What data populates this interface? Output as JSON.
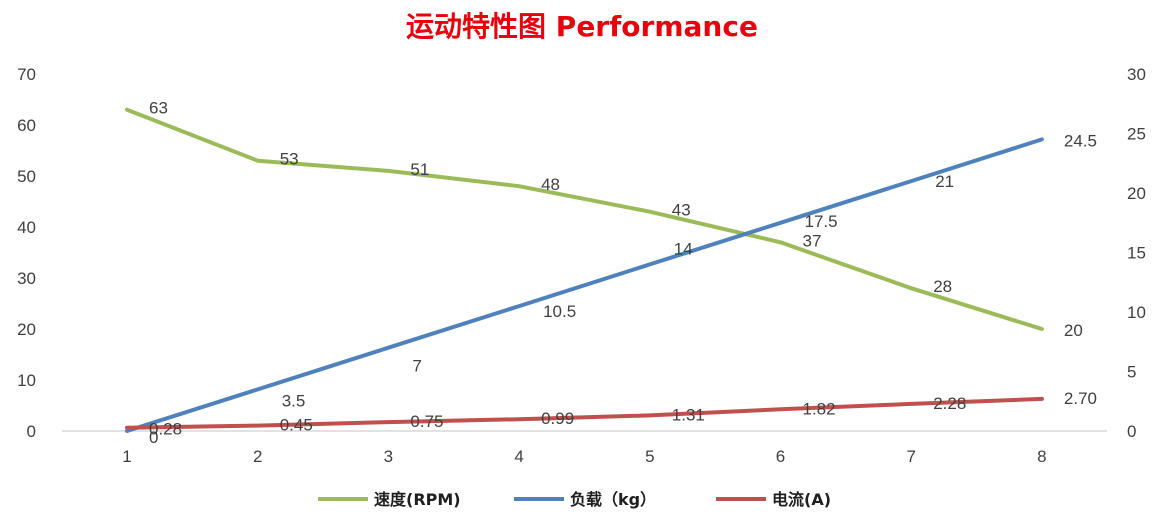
{
  "chart_data": {
    "type": "line",
    "title": "运动特性图 Performance",
    "x": [
      1,
      2,
      3,
      4,
      5,
      6,
      7,
      8
    ],
    "y_left": {
      "range": [
        0,
        70
      ],
      "ticks": [
        0,
        10,
        20,
        30,
        40,
        50,
        60,
        70
      ]
    },
    "y_right": {
      "range": [
        0,
        30
      ],
      "ticks": [
        0,
        5,
        10,
        15,
        20,
        25,
        30
      ]
    },
    "grid": false,
    "legend_position": "bottom",
    "series": [
      {
        "name": "速度(RPM)",
        "axis": "left",
        "color": "#9bbb59",
        "values": [
          63,
          53,
          51,
          48,
          43,
          37,
          28,
          20
        ],
        "labels": [
          "63",
          "53",
          "51",
          "48",
          "43",
          "37",
          "28",
          "20"
        ]
      },
      {
        "name": "负载（kg）",
        "axis": "right",
        "color": "#4f81bd",
        "values": [
          0,
          3.5,
          7,
          10.5,
          14,
          17.5,
          21,
          24.5
        ],
        "labels": [
          "0",
          "3.5",
          "7",
          "10.5",
          "14",
          "17.5",
          "21",
          "24.5"
        ]
      },
      {
        "name": "电流(A)",
        "axis": "right",
        "color": "#c0504d",
        "values": [
          0.28,
          0.45,
          0.75,
          0.99,
          1.31,
          1.82,
          2.28,
          2.7
        ],
        "labels": [
          "0.28",
          "0.45",
          "0.75",
          "0.99",
          "1.31",
          "1.82",
          "2.28",
          "2.70"
        ]
      }
    ]
  }
}
